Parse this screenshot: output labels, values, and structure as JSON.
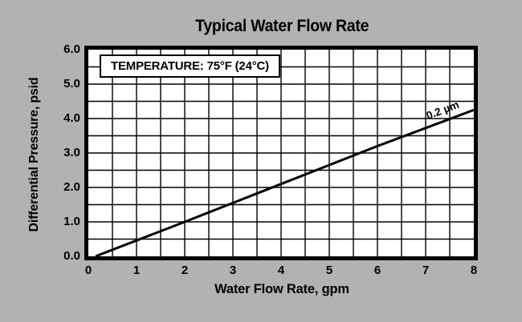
{
  "chart_data": {
    "type": "line",
    "title": "Typical Water Flow Rate",
    "xlabel": "Water Flow Rate, gpm",
    "ylabel": "Differential Pressure, psid",
    "xlim": [
      0,
      8
    ],
    "ylim": [
      0,
      6
    ],
    "x_ticks": [
      "0",
      "1",
      "2",
      "3",
      "4",
      "5",
      "6",
      "7",
      "8"
    ],
    "y_ticks": [
      "6.0",
      "5.0",
      "4.0",
      "3.0",
      "2.0",
      "1.0",
      "0.0"
    ],
    "grid": "on",
    "grid_step_x": 0.5,
    "grid_step_y": 0.5,
    "annotation": "TEMPERATURE: 75°F (24°C)",
    "series": [
      {
        "name": "0.2 µm",
        "points": [
          [
            0.15,
            0.0
          ],
          [
            2.0,
            1.0
          ],
          [
            4.0,
            2.1
          ],
          [
            6.0,
            3.2
          ],
          [
            8.0,
            4.25
          ]
        ]
      }
    ],
    "colors": {
      "background": "#b2b2b2",
      "plot_background": "#ffffff",
      "line": "#000000",
      "grid": "#000000",
      "text": "#000000"
    }
  }
}
